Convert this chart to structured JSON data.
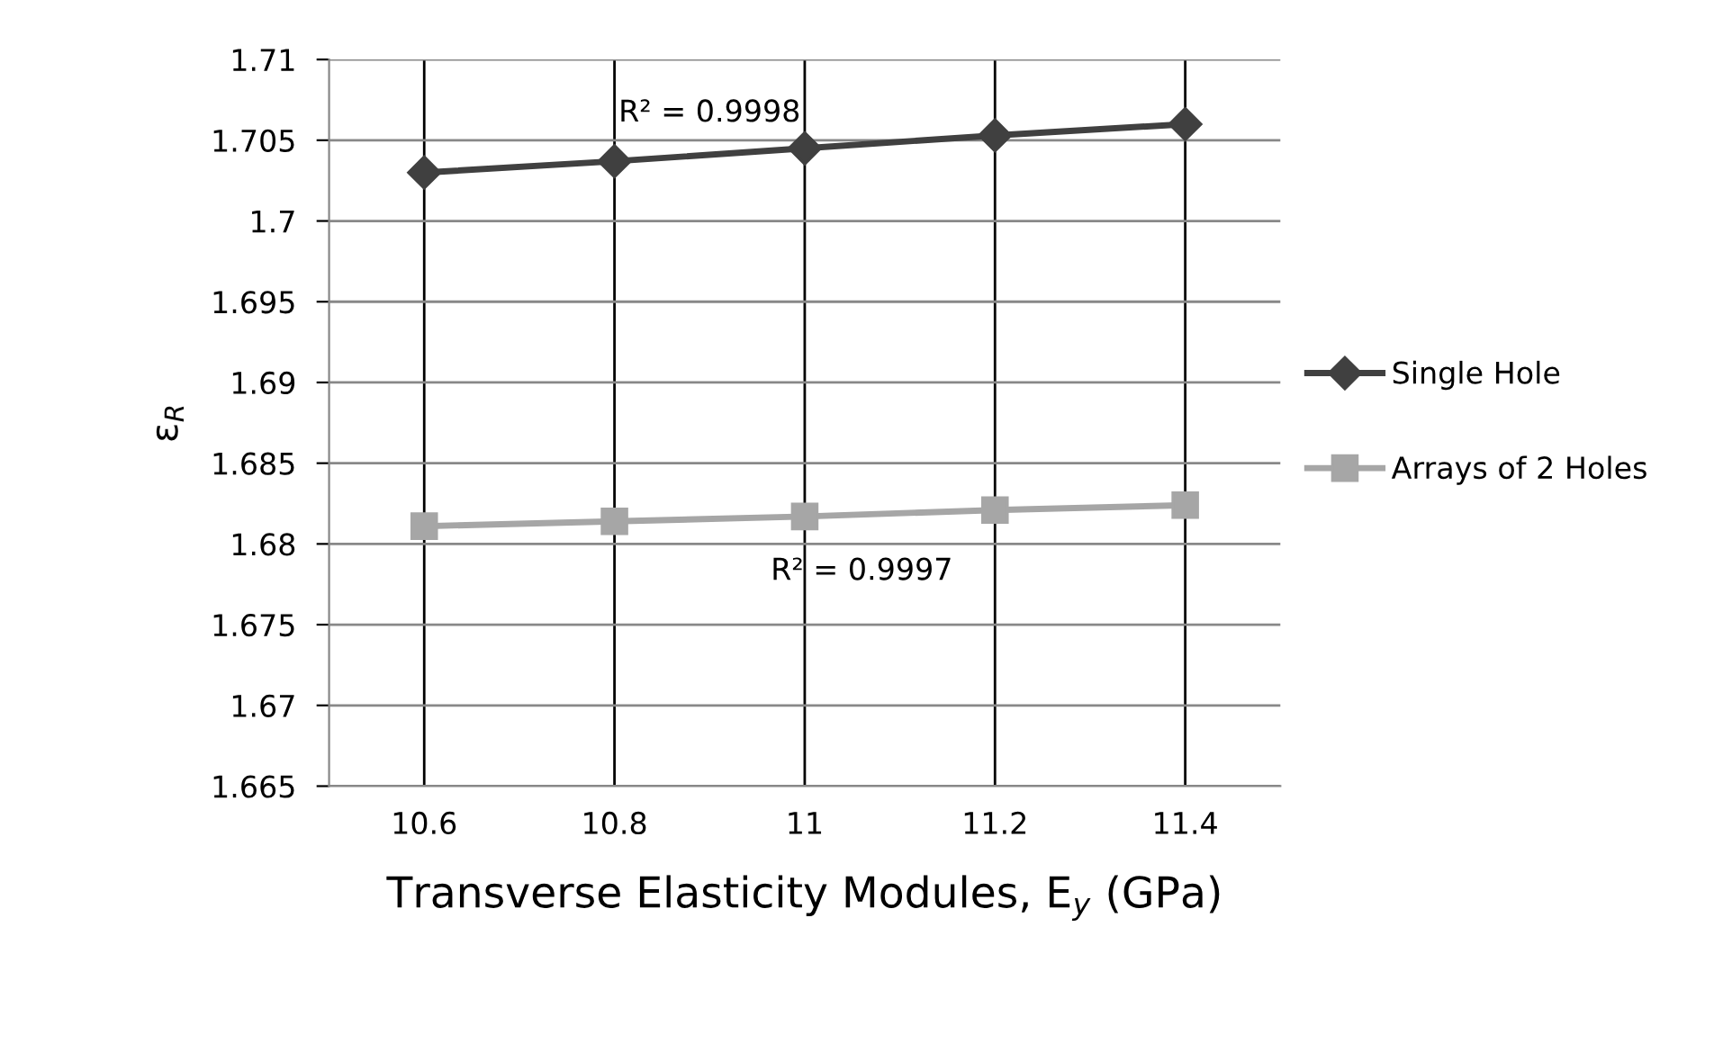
{
  "chart_data": {
    "type": "line",
    "categories": [
      "10.6",
      "10.8",
      "11",
      "11.2",
      "11.4"
    ],
    "series": [
      {
        "name": "Single Hole",
        "color": "#404040",
        "marker": "diamond",
        "values": [
          1.703,
          1.7037,
          1.7045,
          1.7053,
          1.706
        ]
      },
      {
        "name": "Arrays of 2 Holes",
        "color": "#a6a6a6",
        "marker": "square",
        "values": [
          1.6811,
          1.6814,
          1.6817,
          1.6821,
          1.6824
        ]
      }
    ],
    "annotations": [
      "R² = 0.9998",
      "R² = 0.9997"
    ],
    "xlabel": "Transverse Elasticity Modules, E$_{y}$ (GPa)",
    "ylabel": "ε$_{R}$",
    "ylim": [
      1.665,
      1.71
    ],
    "yticks": [
      1.665,
      1.67,
      1.675,
      1.68,
      1.685,
      1.69,
      1.695,
      1.7,
      1.705,
      1.71
    ],
    "grid": true,
    "legend": "right"
  }
}
